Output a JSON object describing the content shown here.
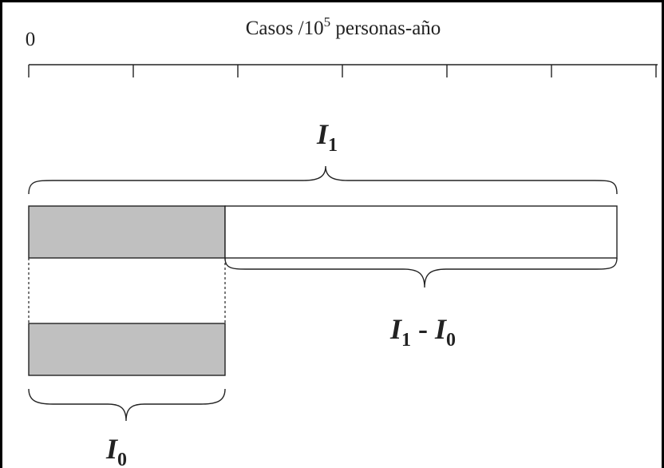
{
  "axis": {
    "title_text": "Casos /10",
    "title_exponent": "5",
    "title_tail": " personas-año",
    "zero_label": "0"
  },
  "labels": {
    "i1": {
      "base": "I",
      "sub": "1"
    },
    "diff": {
      "base_a": "I",
      "sub_a": "1",
      "minus": " - ",
      "base_b": "I",
      "sub_b": "0"
    },
    "i0": {
      "base": "I",
      "sub": "0"
    }
  },
  "colors": {
    "line": "#222222",
    "shaded_fill": "#c0c0c0",
    "frame": "#000000"
  }
}
